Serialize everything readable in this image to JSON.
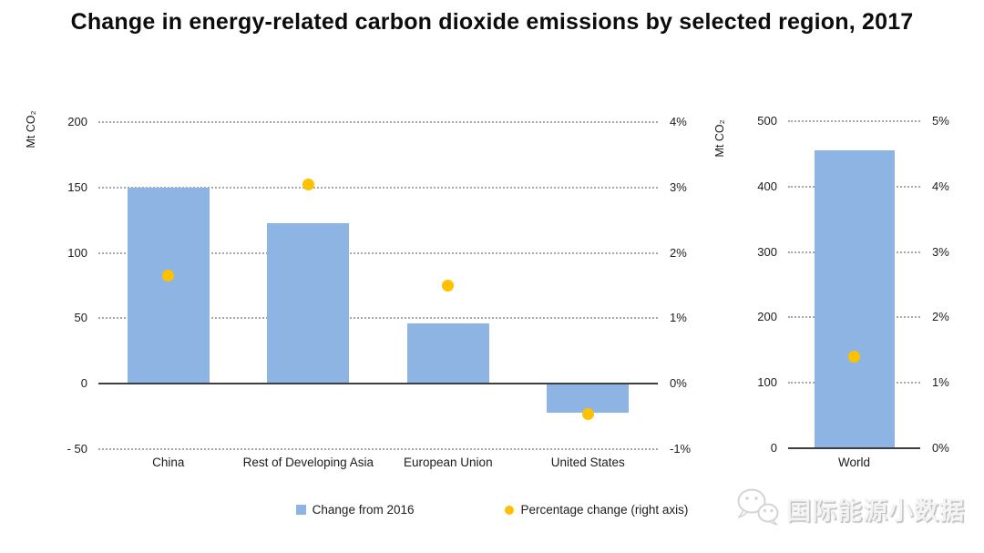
{
  "page": {
    "title": "Change in energy-related carbon dioxide emissions by selected region, 2017"
  },
  "legend": {
    "bar_series": "Change from 2016",
    "dot_series": "Percentage change (right axis)"
  },
  "watermark": {
    "icon": "wechat-icon",
    "text": "国际能源小数据"
  },
  "colors": {
    "bar": "#8EB4E3",
    "dot": "#FFC000",
    "gridline": "#A8A8A8",
    "zero_line": "#3F3F3F",
    "text": "#1C1C1C"
  },
  "chart_data": [
    {
      "type": "bar",
      "name": "emissions-change-by-region",
      "ylabel": "Mt CO₂",
      "categories": [
        "China",
        "Rest of Developing Asia",
        "European Union",
        "United States"
      ],
      "series": [
        {
          "name": "Change from 2016",
          "type": "bar",
          "axis": "left",
          "values": [
            150,
            123,
            46,
            -22
          ]
        },
        {
          "name": "Percentage change (right axis)",
          "type": "point",
          "axis": "right",
          "values": [
            1.65,
            3.05,
            1.5,
            -0.47
          ]
        }
      ],
      "left_axis": {
        "min": -50,
        "max": 200,
        "ticks": [
          200,
          150,
          100,
          50,
          0,
          -50
        ],
        "tick_labels": [
          "200",
          "150",
          "100",
          "50",
          "0",
          "- 50"
        ]
      },
      "right_axis": {
        "min": -1,
        "max": 4,
        "ticks": [
          4,
          3,
          2,
          1,
          0,
          -1
        ],
        "tick_labels": [
          "4%",
          "3%",
          "2%",
          "1%",
          "0%",
          "-1%"
        ]
      },
      "grid": "horizontal dotted",
      "legend_position": "bottom"
    },
    {
      "type": "bar",
      "name": "emissions-change-world",
      "ylabel": "Mt CO₂",
      "categories": [
        "World"
      ],
      "series": [
        {
          "name": "Change from 2016",
          "type": "bar",
          "axis": "left",
          "values": [
            455
          ]
        },
        {
          "name": "Percentage change (right axis)",
          "type": "point",
          "axis": "right",
          "values": [
            1.4
          ]
        }
      ],
      "left_axis": {
        "min": 0,
        "max": 500,
        "ticks": [
          500,
          400,
          300,
          200,
          100,
          0
        ],
        "tick_labels": [
          "500",
          "400",
          "300",
          "200",
          "100",
          "0"
        ]
      },
      "right_axis": {
        "min": 0,
        "max": 5,
        "ticks": [
          5,
          4,
          3,
          2,
          1,
          0
        ],
        "tick_labels": [
          "5%",
          "4%",
          "3%",
          "2%",
          "1%",
          "0%"
        ]
      },
      "grid": "horizontal dotted",
      "legend_position": "bottom"
    }
  ]
}
